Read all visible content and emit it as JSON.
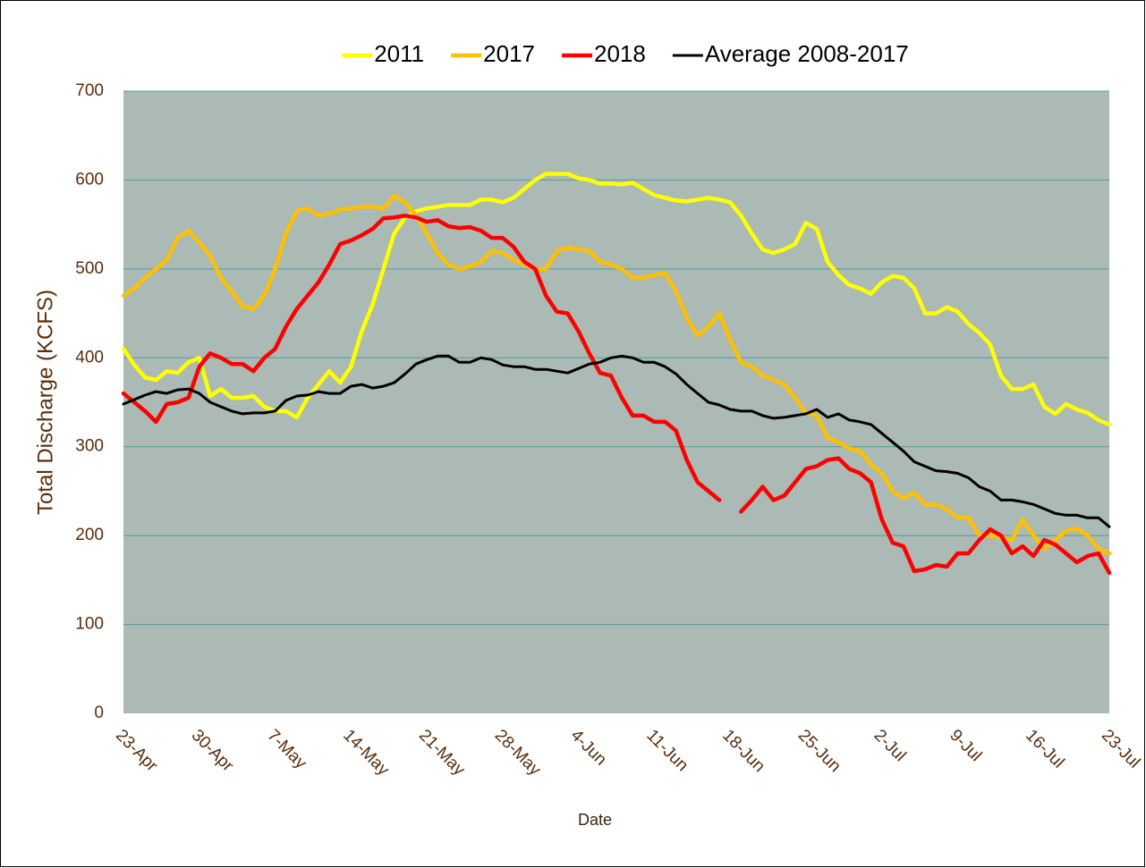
{
  "chart_data": {
    "type": "line",
    "x_label": "Date",
    "y_label": "Total Discharge (KCFS)",
    "categories": [
      "23-Apr",
      null,
      null,
      null,
      null,
      null,
      null,
      "30-Apr",
      null,
      null,
      null,
      null,
      null,
      null,
      "7-May",
      null,
      null,
      null,
      null,
      null,
      null,
      "14-May",
      null,
      null,
      null,
      null,
      null,
      null,
      "21-May",
      null,
      null,
      null,
      null,
      null,
      null,
      "28-May",
      null,
      null,
      null,
      null,
      null,
      null,
      "4-Jun",
      null,
      null,
      null,
      null,
      null,
      null,
      "11-Jun",
      null,
      null,
      null,
      null,
      null,
      null,
      "18-Jun",
      null,
      null,
      null,
      null,
      null,
      null,
      "25-Jun",
      null,
      null,
      null,
      null,
      null,
      null,
      "2-Jul",
      null,
      null,
      null,
      null,
      null,
      null,
      "9-Jul",
      null,
      null,
      null,
      null,
      null,
      null,
      "16-Jul",
      null,
      null,
      null,
      null,
      null,
      null,
      "23-Jul"
    ],
    "ylim": [
      0,
      700
    ],
    "yticks": [
      0,
      100,
      200,
      300,
      400,
      500,
      600,
      700
    ],
    "grid": true,
    "legend": "top",
    "series": [
      {
        "name": "2011",
        "color": "#ffff00",
        "values": [
          410,
          392,
          378,
          375,
          385,
          383,
          395,
          400,
          357,
          365,
          355,
          355,
          357,
          345,
          340,
          340,
          333,
          355,
          370,
          385,
          372,
          390,
          430,
          460,
          500,
          540,
          558,
          565,
          568,
          570,
          572,
          572,
          572,
          578,
          578,
          575,
          580,
          590,
          600,
          607,
          607,
          607,
          602,
          600,
          596,
          596,
          595,
          597,
          590,
          583,
          580,
          577,
          576,
          578,
          580,
          578,
          575,
          560,
          540,
          522,
          518,
          522,
          528,
          552,
          545,
          508,
          493,
          482,
          478,
          472,
          485,
          492,
          490,
          478,
          450,
          450,
          457,
          452,
          438,
          428,
          415,
          380,
          365,
          365,
          370,
          345,
          337,
          348,
          342,
          338,
          330,
          325
        ]
      },
      {
        "name": "2017",
        "color": "#ffc000",
        "values": [
          470,
          478,
          490,
          500,
          510,
          535,
          543,
          530,
          515,
          490,
          475,
          458,
          455,
          470,
          500,
          540,
          565,
          568,
          560,
          562,
          567,
          568,
          570,
          570,
          568,
          582,
          575,
          560,
          540,
          518,
          505,
          500,
          503,
          508,
          520,
          518,
          510,
          505,
          500,
          500,
          520,
          524,
          522,
          520,
          508,
          505,
          500,
          490,
          490,
          493,
          495,
          475,
          445,
          425,
          435,
          450,
          420,
          395,
          390,
          380,
          375,
          370,
          355,
          338,
          335,
          310,
          305,
          298,
          295,
          280,
          270,
          250,
          242,
          248,
          235,
          235,
          230,
          220,
          220,
          200,
          200,
          198,
          195,
          218,
          200,
          185,
          195,
          205,
          208,
          200,
          185,
          180
        ]
      },
      {
        "name": "2018",
        "color": "#ff0000",
        "values": [
          360,
          350,
          340,
          328,
          348,
          350,
          355,
          390,
          405,
          400,
          393,
          393,
          385,
          400,
          410,
          435,
          455,
          470,
          485,
          505,
          528,
          532,
          538,
          545,
          557,
          558,
          560,
          558,
          553,
          555,
          548,
          546,
          547,
          543,
          535,
          535,
          525,
          508,
          500,
          470,
          452,
          450,
          430,
          405,
          383,
          380,
          355,
          335,
          335,
          328,
          328,
          318,
          285,
          260,
          250,
          240,
          null,
          227,
          240,
          255,
          240,
          245,
          260,
          275,
          278,
          285,
          287,
          275,
          270,
          260,
          218,
          192,
          188,
          160,
          162,
          167,
          165,
          180,
          180,
          195,
          207,
          200,
          180,
          188,
          177,
          195,
          190,
          180,
          170,
          177,
          180,
          158
        ]
      },
      {
        "name": "Average 2008-2017",
        "color": "#000000",
        "values": [
          348,
          353,
          358,
          362,
          360,
          364,
          365,
          360,
          350,
          345,
          340,
          337,
          338,
          338,
          340,
          352,
          357,
          358,
          362,
          360,
          360,
          368,
          370,
          366,
          368,
          372,
          382,
          393,
          398,
          402,
          402,
          395,
          395,
          400,
          398,
          392,
          390,
          390,
          387,
          387,
          385,
          383,
          388,
          393,
          395,
          400,
          402,
          400,
          395,
          395,
          390,
          382,
          370,
          360,
          350,
          347,
          342,
          340,
          340,
          335,
          332,
          333,
          335,
          337,
          342,
          333,
          337,
          330,
          328,
          325,
          315,
          305,
          295,
          283,
          278,
          273,
          272,
          270,
          265,
          255,
          250,
          240,
          240,
          238,
          235,
          230,
          225,
          223,
          223,
          220,
          220,
          210
        ]
      }
    ]
  }
}
